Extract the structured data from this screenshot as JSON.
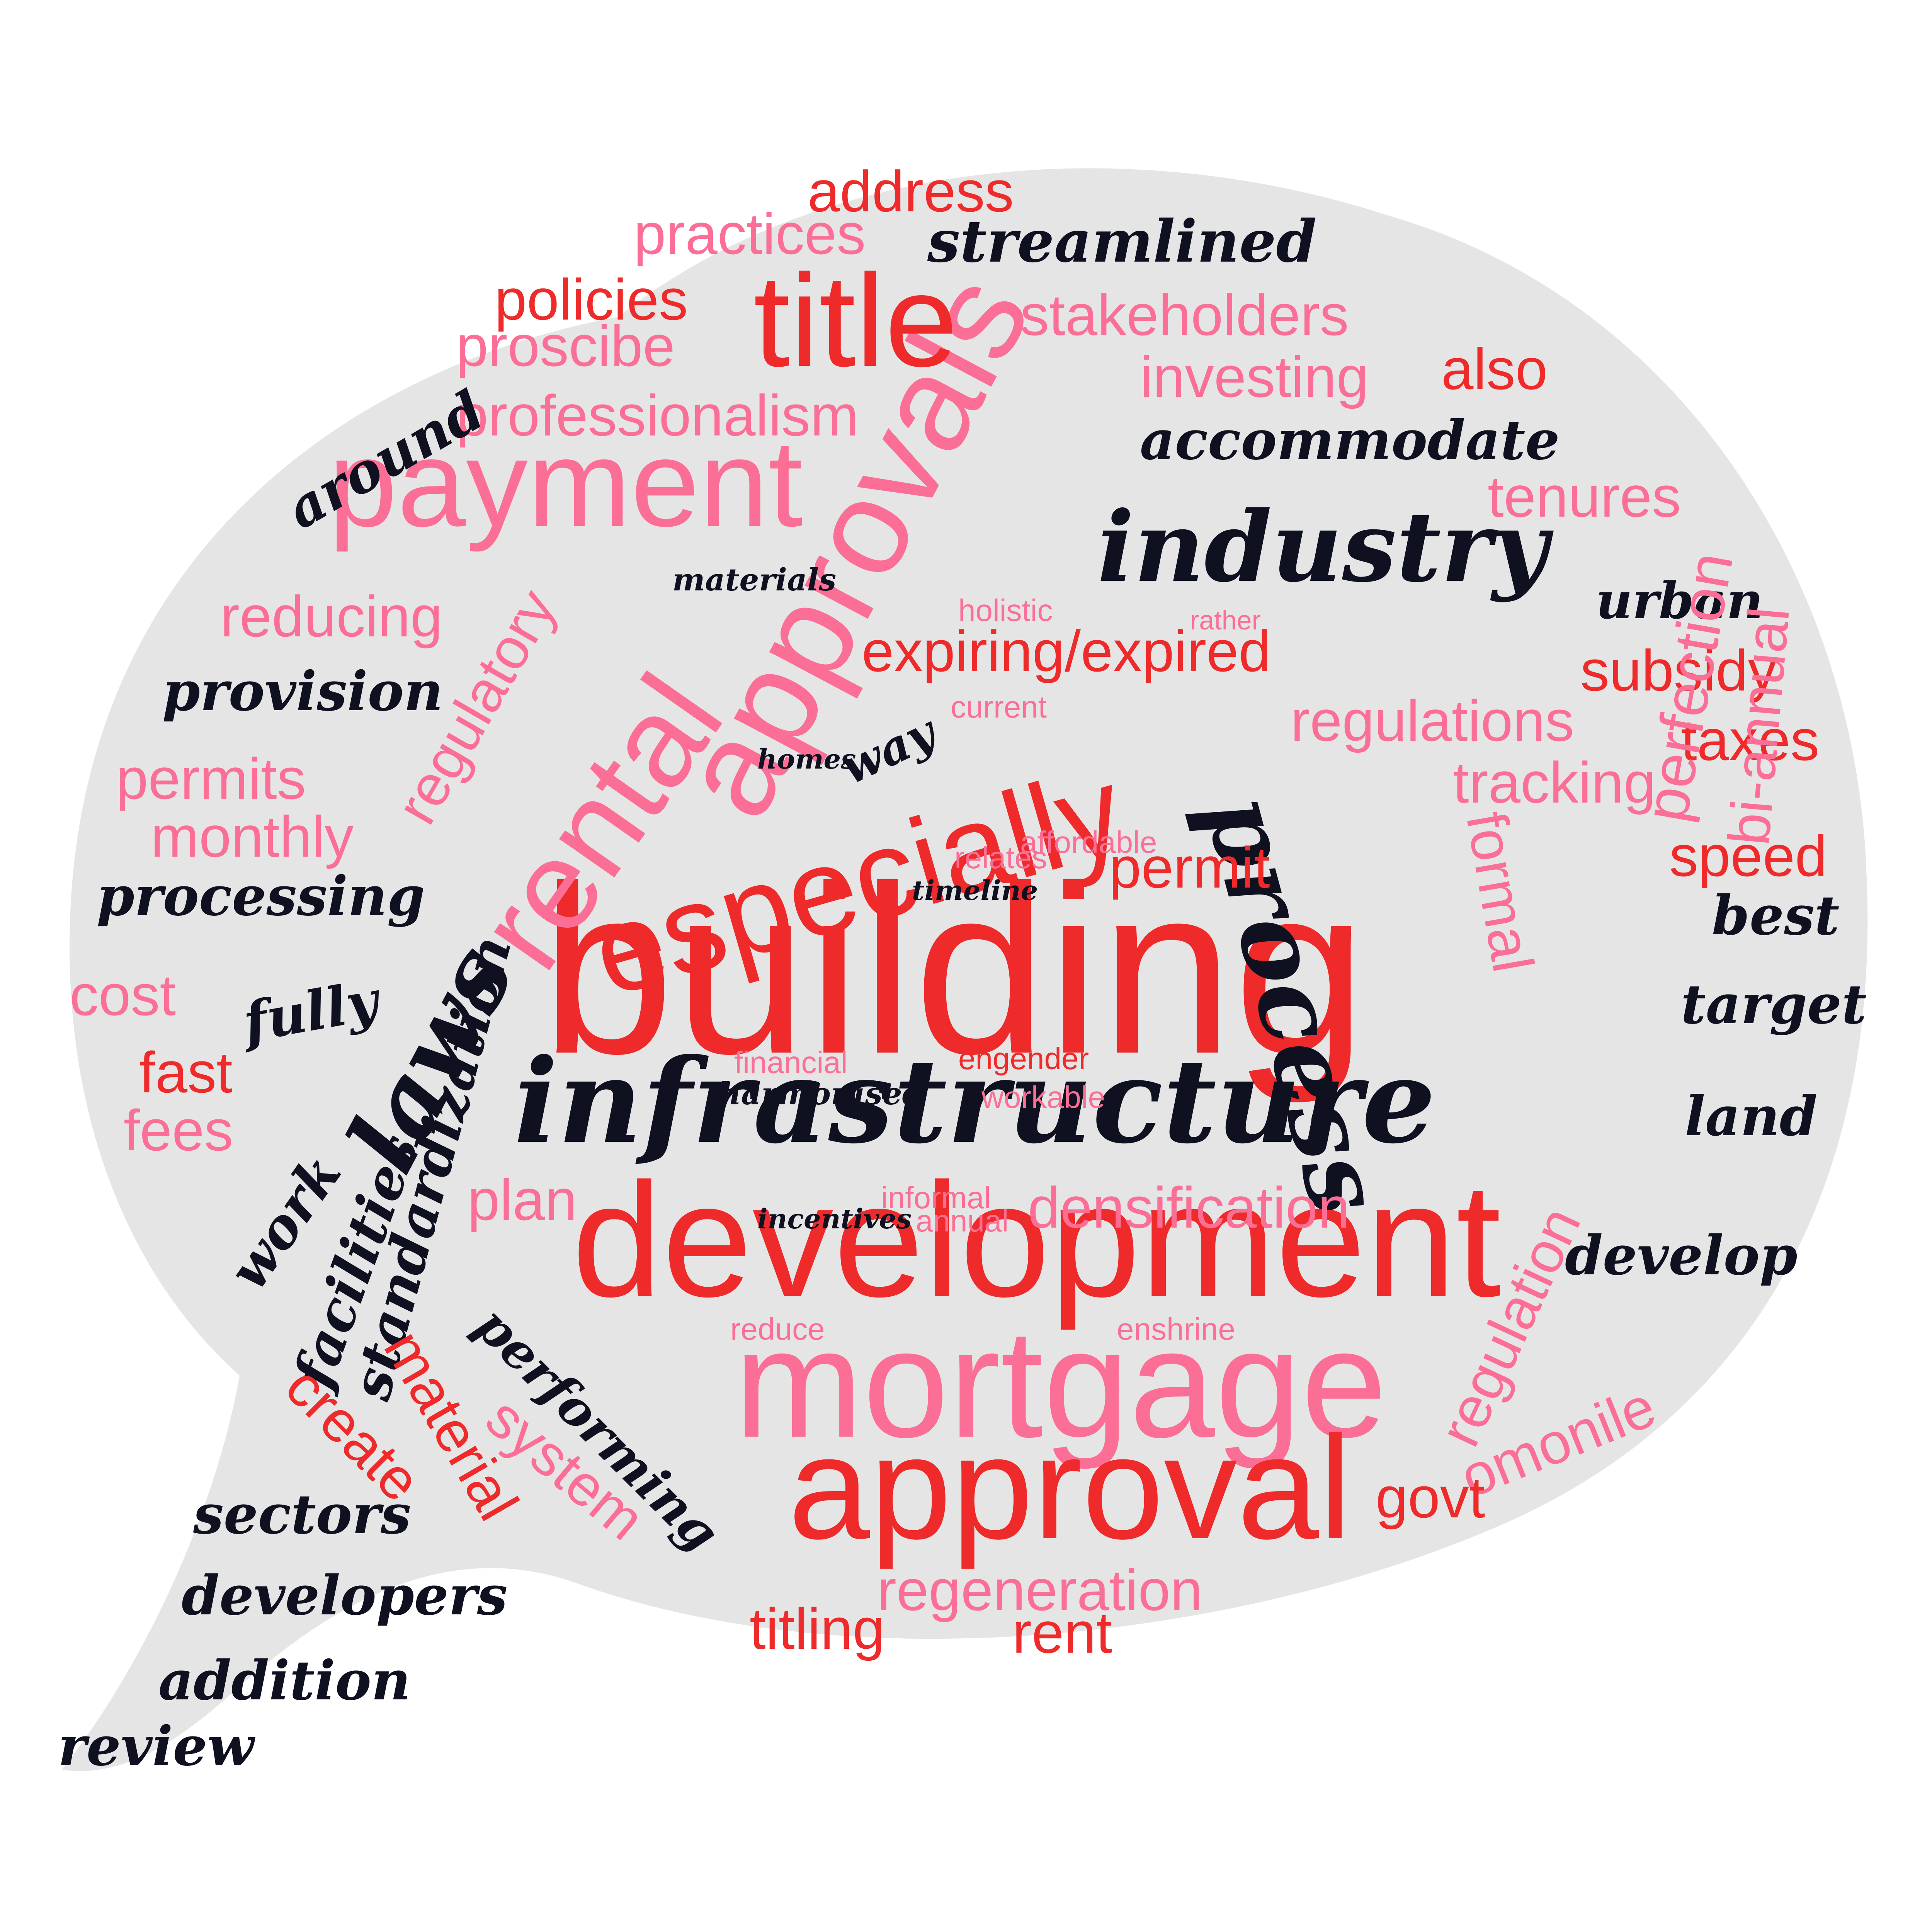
{
  "colors": {
    "bubble": "#e5e5e5",
    "red": "#ee2a2a",
    "pink": "#fb6f96",
    "navy": "#0f1020"
  },
  "words": [
    {
      "text": "building",
      "color": "red",
      "style": "sans"
    },
    {
      "text": "development",
      "color": "red",
      "style": "sans"
    },
    {
      "text": "mortgage",
      "color": "pink",
      "style": "sans"
    },
    {
      "text": "approval",
      "color": "red",
      "style": "sans"
    },
    {
      "text": "infrastructure",
      "color": "navy",
      "style": "bold"
    },
    {
      "text": "especially",
      "color": "red",
      "style": "sans"
    },
    {
      "text": "approvals",
      "color": "pink",
      "style": "sans"
    },
    {
      "text": "rental",
      "color": "pink",
      "style": "sans"
    },
    {
      "text": "payment",
      "color": "pink",
      "style": "sans"
    },
    {
      "text": "title",
      "color": "red",
      "style": "sans"
    },
    {
      "text": "industry",
      "color": "navy",
      "style": "bold"
    },
    {
      "text": "process",
      "color": "navy",
      "style": "bold"
    },
    {
      "text": "laws",
      "color": "navy",
      "style": "bold"
    },
    {
      "text": "address",
      "color": "red",
      "style": "sans"
    },
    {
      "text": "practices",
      "color": "pink",
      "style": "sans"
    },
    {
      "text": "streamlined",
      "color": "navy",
      "style": "bold"
    },
    {
      "text": "policies",
      "color": "red",
      "style": "sans"
    },
    {
      "text": "stakeholders",
      "color": "pink",
      "style": "sans"
    },
    {
      "text": "proscibe",
      "color": "pink",
      "style": "sans"
    },
    {
      "text": "also",
      "color": "red",
      "style": "sans"
    },
    {
      "text": "investing",
      "color": "pink",
      "style": "sans"
    },
    {
      "text": "professionalism",
      "color": "pink",
      "style": "sans"
    },
    {
      "text": "around",
      "color": "navy",
      "style": "bold"
    },
    {
      "text": "accommodate",
      "color": "navy",
      "style": "bold"
    },
    {
      "text": "tenures",
      "color": "pink",
      "style": "sans"
    },
    {
      "text": "materials",
      "color": "navy",
      "style": "bold"
    },
    {
      "text": "urban",
      "color": "navy",
      "style": "bold"
    },
    {
      "text": "reducing",
      "color": "pink",
      "style": "sans"
    },
    {
      "text": "regulatory",
      "color": "pink",
      "style": "sans"
    },
    {
      "text": "holistic",
      "color": "pink",
      "style": "sans"
    },
    {
      "text": "rather",
      "color": "pink",
      "style": "sans"
    },
    {
      "text": "expiring/expired",
      "color": "red",
      "style": "sans"
    },
    {
      "text": "subsidy",
      "color": "red",
      "style": "sans"
    },
    {
      "text": "provision",
      "color": "navy",
      "style": "bold"
    },
    {
      "text": "way",
      "color": "navy",
      "style": "bold"
    },
    {
      "text": "current",
      "color": "pink",
      "style": "sans"
    },
    {
      "text": "regulations",
      "color": "pink",
      "style": "sans"
    },
    {
      "text": "taxes",
      "color": "red",
      "style": "sans"
    },
    {
      "text": "homes",
      "color": "navy",
      "style": "bold"
    },
    {
      "text": "permits",
      "color": "pink",
      "style": "sans"
    },
    {
      "text": "tracking",
      "color": "pink",
      "style": "sans"
    },
    {
      "text": "monthly",
      "color": "pink",
      "style": "sans"
    },
    {
      "text": "affordable",
      "color": "pink",
      "style": "sans"
    },
    {
      "text": "speed",
      "color": "red",
      "style": "sans"
    },
    {
      "text": "relates",
      "color": "pink",
      "style": "sans"
    },
    {
      "text": "permit",
      "color": "red",
      "style": "sans"
    },
    {
      "text": "formal",
      "color": "pink",
      "style": "sans"
    },
    {
      "text": "processing",
      "color": "navy",
      "style": "bold"
    },
    {
      "text": "timeline",
      "color": "navy",
      "style": "bold"
    },
    {
      "text": "perfection",
      "color": "pink",
      "style": "sans"
    },
    {
      "text": "bi-annual",
      "color": "pink",
      "style": "sans"
    },
    {
      "text": "best",
      "color": "navy",
      "style": "bold"
    },
    {
      "text": "standardization",
      "color": "navy",
      "style": "bold"
    },
    {
      "text": "cost",
      "color": "pink",
      "style": "sans"
    },
    {
      "text": "fully",
      "color": "navy",
      "style": "bold"
    },
    {
      "text": "target",
      "color": "navy",
      "style": "bold"
    },
    {
      "text": "fast",
      "color": "red",
      "style": "sans"
    },
    {
      "text": "financial",
      "color": "pink",
      "style": "sans"
    },
    {
      "text": "engender",
      "color": "red",
      "style": "sans"
    },
    {
      "text": "harmonised",
      "color": "navy",
      "style": "bold"
    },
    {
      "text": "workable",
      "color": "pink",
      "style": "sans"
    },
    {
      "text": "land",
      "color": "navy",
      "style": "bold"
    },
    {
      "text": "fees",
      "color": "pink",
      "style": "sans"
    },
    {
      "text": "work",
      "color": "navy",
      "style": "bold"
    },
    {
      "text": "facilities",
      "color": "navy",
      "style": "bold"
    },
    {
      "text": "plan",
      "color": "pink",
      "style": "sans"
    },
    {
      "text": "informal",
      "color": "pink",
      "style": "sans"
    },
    {
      "text": "annual",
      "color": "pink",
      "style": "sans"
    },
    {
      "text": "incentives",
      "color": "navy",
      "style": "bold"
    },
    {
      "text": "densification",
      "color": "pink",
      "style": "sans"
    },
    {
      "text": "develop",
      "color": "navy",
      "style": "bold"
    },
    {
      "text": "regulation",
      "color": "pink",
      "style": "sans"
    },
    {
      "text": "reduce",
      "color": "pink",
      "style": "sans"
    },
    {
      "text": "enshrine",
      "color": "pink",
      "style": "sans"
    },
    {
      "text": "omonile",
      "color": "pink",
      "style": "sans"
    },
    {
      "text": "performing",
      "color": "navy",
      "style": "bold"
    },
    {
      "text": "create",
      "color": "red",
      "style": "sans"
    },
    {
      "text": "material",
      "color": "red",
      "style": "sans"
    },
    {
      "text": "system",
      "color": "pink",
      "style": "sans"
    },
    {
      "text": "govt",
      "color": "red",
      "style": "sans"
    },
    {
      "text": "sectors",
      "color": "navy",
      "style": "bold"
    },
    {
      "text": "developers",
      "color": "navy",
      "style": "bold"
    },
    {
      "text": "regeneration",
      "color": "pink",
      "style": "sans"
    },
    {
      "text": "titling",
      "color": "red",
      "style": "sans"
    },
    {
      "text": "rent",
      "color": "red",
      "style": "sans"
    },
    {
      "text": "addition",
      "color": "navy",
      "style": "bold"
    },
    {
      "text": "review",
      "color": "navy",
      "style": "bold"
    }
  ]
}
